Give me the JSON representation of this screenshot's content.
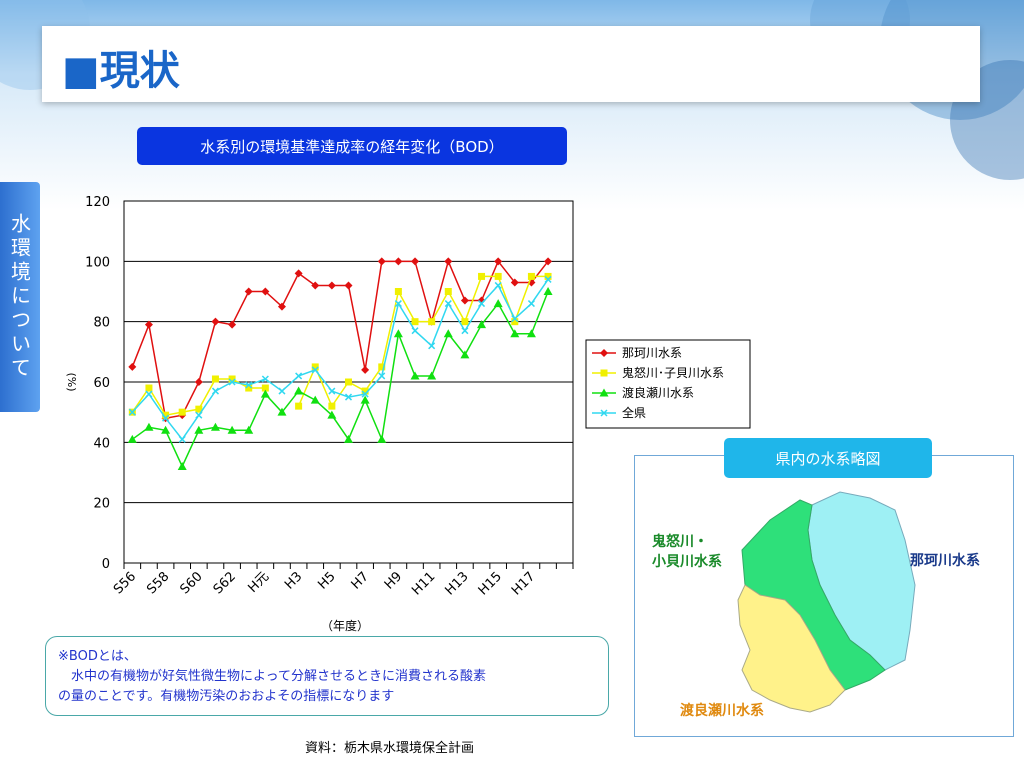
{
  "page": {
    "title": "■現状",
    "side_tab": "水環境について",
    "chart_title": "水系別の環境基準達成率の経年変化（BOD）",
    "note_lines": [
      "※BODとは、",
      "　水中の有機物が好気性微生物によって分解させるときに消費される酸素",
      "の量のことです。有機物汚染のおおよその指標になります"
    ],
    "source": "資料：栃木県水環境保全計画"
  },
  "map": {
    "title": "県内の水系略図",
    "label_kinu": "鬼怒川・\n小貝川水系",
    "label_naka": "那珂川水系",
    "label_watarase": "渡良瀬川水系",
    "colors": {
      "kinu": "#2ee07a",
      "naka": "#9ef0f4",
      "watarase": "#fff28a"
    }
  },
  "chart_data": {
    "type": "line",
    "ylabel": "(%)",
    "xlabel": "（年度）",
    "ylim": [
      0,
      120
    ],
    "yticks": [
      0,
      20,
      40,
      60,
      80,
      100,
      120
    ],
    "grid": true,
    "legend_position": "right",
    "x": [
      "S56",
      "S57",
      "S58",
      "S59",
      "S60",
      "S61",
      "S62",
      "S63",
      "H元",
      "H2",
      "H3",
      "H4",
      "H5",
      "H6",
      "H7",
      "H8",
      "H9",
      "H10",
      "H11",
      "H12",
      "H13",
      "H14",
      "H15",
      "H16",
      "H17",
      "H18",
      "H19"
    ],
    "x_tick_labels": [
      "S56",
      "S58",
      "S60",
      "S62",
      "H元",
      "H3",
      "H5",
      "H7",
      "H9",
      "H11",
      "H13",
      "H15",
      "H17"
    ],
    "series": [
      {
        "name": "那珂川水系",
        "color": "#e01010",
        "marker": "diamond",
        "values": [
          65,
          79,
          48,
          49,
          60,
          80,
          79,
          90,
          90,
          85,
          96,
          92,
          92,
          92,
          64,
          100,
          100,
          100,
          80,
          100,
          87,
          87,
          100,
          93,
          93,
          100,
          null
        ]
      },
      {
        "name": "鬼怒川･子貝川水系",
        "color": "#f0f000",
        "marker": "square",
        "values": [
          50,
          58,
          49,
          50,
          51,
          61,
          61,
          58,
          58,
          null,
          52,
          65,
          52,
          60,
          57,
          65,
          90,
          80,
          80,
          90,
          80,
          95,
          95,
          80,
          95,
          95,
          null
        ]
      },
      {
        "name": "渡良瀬川水系",
        "color": "#10e010",
        "marker": "triangle",
        "values": [
          41,
          45,
          44,
          32,
          44,
          45,
          44,
          44,
          56,
          50,
          57,
          54,
          49,
          41,
          54,
          41,
          76,
          62,
          62,
          76,
          69,
          79,
          86,
          76,
          76,
          90,
          null
        ]
      },
      {
        "name": "全県",
        "color": "#30d8f0",
        "marker": "x",
        "values": [
          50,
          56,
          48,
          41,
          49,
          57,
          60,
          59,
          61,
          57,
          62,
          64,
          57,
          55,
          56,
          62,
          86,
          77,
          72,
          86,
          77,
          86,
          92,
          81,
          86,
          94,
          null
        ]
      }
    ]
  }
}
